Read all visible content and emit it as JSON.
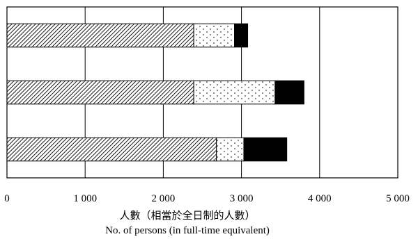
{
  "chart_data": {
    "type": "bar",
    "orientation": "horizontal",
    "stacked": true,
    "categories": [
      "",
      "",
      ""
    ],
    "series": [
      {
        "pattern": "diagonal-hatch",
        "values": [
          2390,
          2390,
          2680
        ]
      },
      {
        "pattern": "dotted",
        "values": [
          520,
          1040,
          350
        ]
      },
      {
        "pattern": "solid-black",
        "values": [
          170,
          370,
          550
        ]
      }
    ],
    "xlim": [
      0,
      5000
    ],
    "x_ticks": [
      0,
      1000,
      2000,
      3000,
      4000,
      5000
    ],
    "x_tick_labels": [
      "0",
      "1 000",
      "2 000",
      "3 000",
      "4 000",
      "5 000"
    ],
    "xlabel_zh": "人數（相當於全日制的人數）",
    "xlabel_en": "No. of persons (in full-time equivalent)",
    "grid": "vertical",
    "legend": "none",
    "colors": {
      "hatch": "#000000",
      "dots": "#000000",
      "solid": "#000000",
      "background": "#ffffff"
    }
  }
}
